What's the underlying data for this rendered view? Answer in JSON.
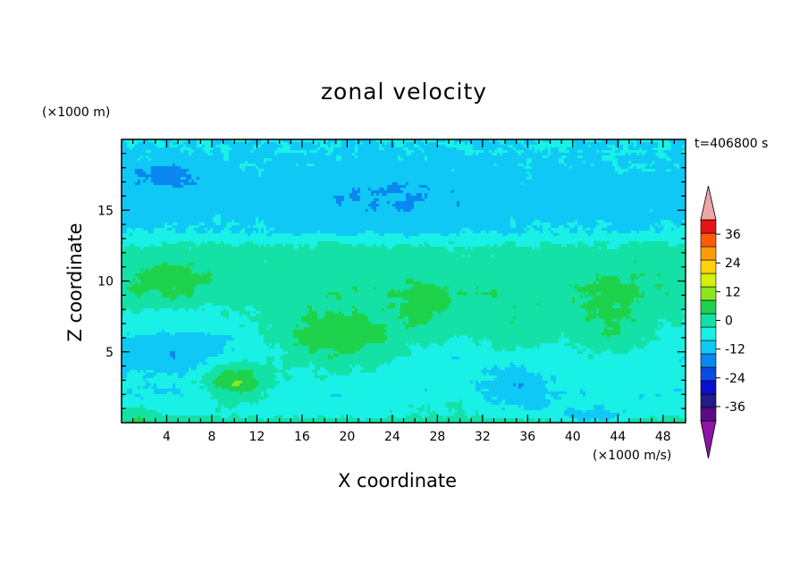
{
  "chart_data": {
    "type": "heatmap",
    "title": "zonal velocity",
    "xlabel": "X coordinate",
    "ylabel": "Z coordinate",
    "x_unit_label": "(×1000 m/s)",
    "z_unit_label": "(×1000 m)",
    "time_label": "t=406800 s",
    "xlim": [
      0,
      50
    ],
    "ylim": [
      0,
      20
    ],
    "x_ticks": [
      4,
      8,
      12,
      16,
      20,
      24,
      28,
      32,
      36,
      40,
      44,
      48
    ],
    "y_ticks": [
      5,
      10,
      15
    ],
    "colorbar": {
      "ticks": [
        36,
        24,
        12,
        0,
        -12,
        -24,
        -36
      ],
      "levels": [
        -42,
        -36,
        -30,
        -24,
        -18,
        -12,
        -6,
        0,
        6,
        12,
        18,
        24,
        30,
        36,
        42
      ],
      "colors": [
        "#5a0b82",
        "#231b86",
        "#0b0fd2",
        "#0a4be1",
        "#0a87f0",
        "#0fc8f5",
        "#19f0e6",
        "#14e1a5",
        "#1ed24b",
        "#8ce61e",
        "#d2f00a",
        "#ffd20a",
        "#ff9b0a",
        "#ff5a0a",
        "#e61414"
      ],
      "over_color": "#f0a5a5",
      "under_color": "#8c14aa"
    },
    "field_features": [
      {
        "x": 19,
        "z": 5.5,
        "value": 14
      },
      {
        "x": 10,
        "z": 3.0,
        "value": 16
      },
      {
        "x": 3,
        "z": 10.2,
        "value": 8
      },
      {
        "x": 43.5,
        "z": 6.5,
        "value": 8
      },
      {
        "x": 35,
        "z": 6.0,
        "value": 6
      },
      {
        "x": 4,
        "z": 17.5,
        "value": -14
      },
      {
        "x": 35,
        "z": 2.5,
        "value": -14
      },
      {
        "x": 5,
        "z": 5.0,
        "value": -10
      },
      {
        "x": 24,
        "z": 15.5,
        "value": -8
      },
      {
        "x": 42,
        "z": 0.2,
        "value": -14
      },
      {
        "x": 30,
        "z": 3.0,
        "value": -8
      },
      {
        "x": 25,
        "z": 8.0,
        "value": 2
      }
    ]
  }
}
